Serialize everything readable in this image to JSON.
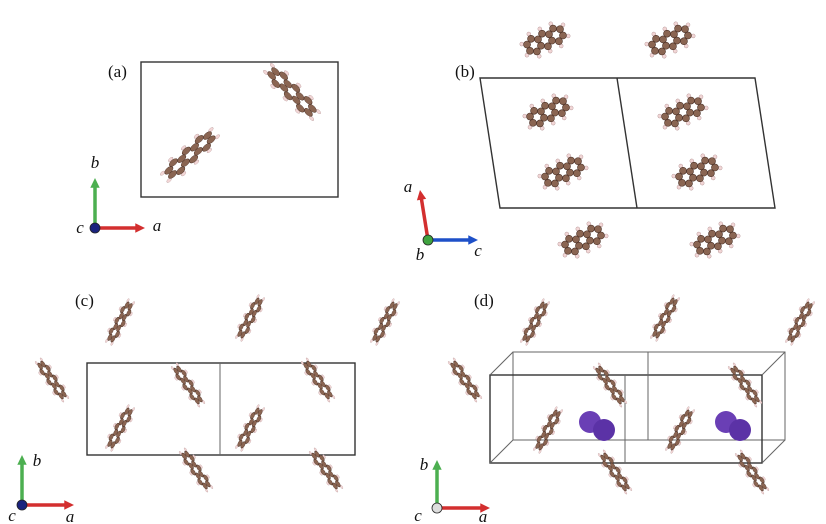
{
  "panels": [
    {
      "label": "(a)",
      "axes": [
        "b",
        "c",
        "a"
      ]
    },
    {
      "label": "(b)",
      "axes": [
        "a",
        "b",
        "c"
      ]
    },
    {
      "label": "(c)",
      "axes": [
        "b",
        "c",
        "a"
      ]
    },
    {
      "label": "(d)",
      "axes": [
        "b",
        "c",
        "a"
      ]
    }
  ]
}
